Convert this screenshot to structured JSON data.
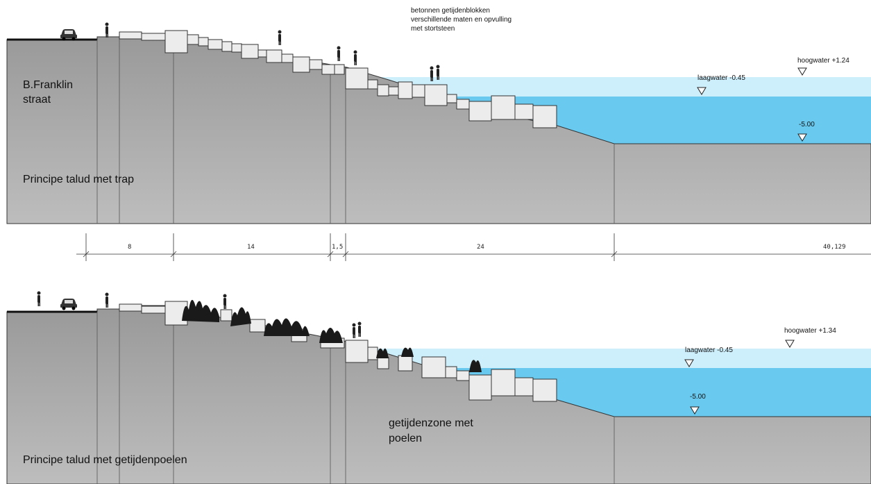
{
  "top_section": {
    "street_label_line1": "B.Franklin",
    "street_label_line2": "straat",
    "title": "Principe talud met trap",
    "note_line1": "betonnen getijdenblokken",
    "note_line2": "verschillende maten en opvulling",
    "note_line3": "met stortsteen",
    "levels": {
      "high": "hoogwater +1.24",
      "low": "laagwater -0.45",
      "bottom": "-5.00"
    }
  },
  "dimensions": {
    "segments": [
      "8",
      "14",
      "1,5",
      "24",
      "40,129"
    ]
  },
  "bottom_section": {
    "title": "Principe talud met getijdenpoelen",
    "zone_line1": "getijdenzone met",
    "zone_line2": "poelen",
    "levels": {
      "high": "hoogwater +1.34",
      "low": "laagwater -0.45",
      "bottom": "-5.00"
    }
  },
  "colors": {
    "ground": "#a6a6a6",
    "water_light": "#cdeefb",
    "water_deep": "#69c9ee",
    "block": "#ececec"
  }
}
